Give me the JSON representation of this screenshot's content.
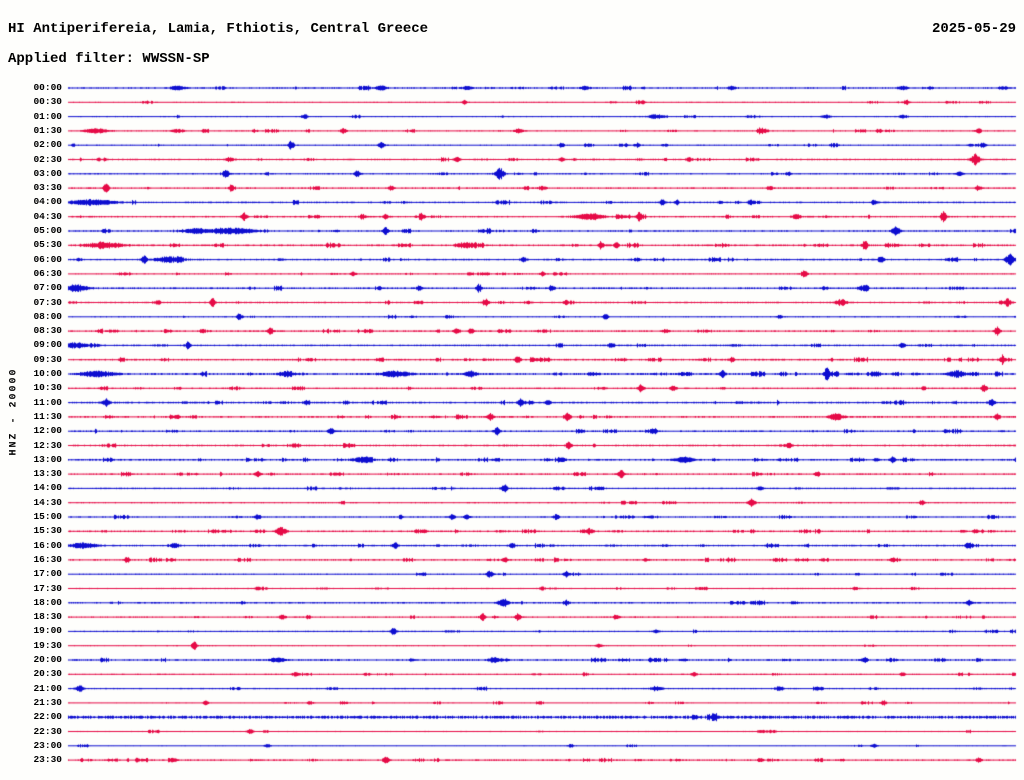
{
  "header": {
    "title": "HI Antiperifereia, Lamia, Fthiotis, Central Greece",
    "date": "2025-05-29",
    "filter_label": "Applied filter: WWSSN-SP"
  },
  "axis": {
    "left_label": "HNZ - 20000",
    "row_interval": "30 minutes",
    "first_row": "00:00",
    "last_row": "23:30"
  },
  "colors": {
    "trace_blue": "#0d0dd0",
    "trace_red": "#e60a46",
    "text": "#000000",
    "background": "#fefefc"
  },
  "chart_data": {
    "type": "line",
    "subtype": "helicorder-seismogram",
    "title": "HI Antiperifereia, Lamia, Fthiotis, Central Greece",
    "date": "2025-05-29",
    "applied_filter": "WWSSN-SP",
    "channel": "HNZ - 20000",
    "row_interval_minutes": 30,
    "row_color_alternation": [
      "blue",
      "red"
    ],
    "rows": [
      {
        "t": "00:00",
        "c": "blue",
        "b": 0.7,
        "a": 0.8,
        "ev": [
          [
            0.115,
            2.2,
            5
          ],
          [
            0.33,
            2.2,
            4
          ],
          [
            0.42,
            2.0,
            3
          ],
          [
            0.545,
            2.0,
            3
          ],
          [
            0.7,
            1.8,
            3
          ],
          [
            0.88,
            1.8,
            4
          ]
        ]
      },
      {
        "t": "00:30",
        "c": "red",
        "b": 0.55,
        "a": 0.35,
        "ev": [
          [
            0.418,
            2.0,
            2
          ],
          [
            0.884,
            2.6,
            2
          ]
        ]
      },
      {
        "t": "01:00",
        "c": "blue",
        "b": 0.55,
        "a": 0.4,
        "ev": [
          [
            0.25,
            1.8,
            2
          ],
          [
            0.62,
            2.0,
            6
          ],
          [
            0.8,
            1.8,
            3
          ],
          [
            0.88,
            1.8,
            3
          ]
        ]
      },
      {
        "t": "01:30",
        "c": "red",
        "b": 0.6,
        "a": 0.9,
        "ev": [
          [
            0.03,
            2.2,
            8
          ],
          [
            0.115,
            2.0,
            4
          ],
          [
            0.29,
            3.0,
            2
          ],
          [
            0.475,
            2.2,
            3
          ],
          [
            0.73,
            1.8,
            2
          ],
          [
            0.855,
            1.8,
            2
          ],
          [
            0.96,
            2.0,
            2
          ]
        ]
      },
      {
        "t": "02:00",
        "c": "blue",
        "b": 0.6,
        "a": 0.5,
        "ev": [
          [
            0.235,
            4.6,
            2
          ],
          [
            0.33,
            3.8,
            2
          ],
          [
            0.52,
            2.0,
            2
          ],
          [
            0.6,
            2.0,
            2
          ],
          [
            0.965,
            2.2,
            2
          ]
        ]
      },
      {
        "t": "02:30",
        "c": "red",
        "b": 0.65,
        "a": 0.8,
        "ev": [
          [
            0.17,
            2.2,
            3
          ],
          [
            0.41,
            2.6,
            2
          ],
          [
            0.52,
            2.0,
            2
          ],
          [
            0.655,
            2.0,
            2
          ],
          [
            0.957,
            5.5,
            3
          ]
        ]
      },
      {
        "t": "03:00",
        "c": "blue",
        "b": 0.65,
        "a": 0.7,
        "ev": [
          [
            0.166,
            4.8,
            2
          ],
          [
            0.305,
            3.6,
            2
          ],
          [
            0.455,
            5.8,
            3
          ],
          [
            0.76,
            2.0,
            2
          ],
          [
            0.94,
            2.6,
            2
          ]
        ]
      },
      {
        "t": "03:30",
        "c": "red",
        "b": 0.7,
        "a": 0.9,
        "ev": [
          [
            0.04,
            4.0,
            2
          ],
          [
            0.172,
            3.4,
            1.5
          ],
          [
            0.34,
            2.2,
            2
          ],
          [
            0.5,
            2.0,
            3
          ],
          [
            0.74,
            2.0,
            2
          ],
          [
            0.96,
            2.0,
            2
          ]
        ]
      },
      {
        "t": "04:00",
        "c": "blue",
        "b": 0.7,
        "a": 0.7,
        "ev": [
          [
            0.025,
            2.8,
            16
          ],
          [
            0.627,
            3.8,
            1.5
          ],
          [
            0.642,
            3.0,
            1.5
          ],
          [
            0.72,
            2.0,
            2
          ],
          [
            0.85,
            2.8,
            2
          ]
        ]
      },
      {
        "t": "04:30",
        "c": "red",
        "b": 0.7,
        "a": 0.9,
        "ev": [
          [
            0.185,
            3.8,
            2
          ],
          [
            0.31,
            2.8,
            2
          ],
          [
            0.335,
            2.6,
            2
          ],
          [
            0.373,
            2.6,
            2
          ],
          [
            0.55,
            3.2,
            10
          ],
          [
            0.602,
            3.6,
            2
          ],
          [
            0.768,
            2.8,
            3
          ],
          [
            0.923,
            5.8,
            2
          ]
        ]
      },
      {
        "t": "05:00",
        "c": "blue",
        "b": 0.7,
        "a": 0.9,
        "ev": [
          [
            0.135,
            2.8,
            8
          ],
          [
            0.175,
            3.0,
            14
          ],
          [
            0.335,
            3.8,
            2
          ],
          [
            0.443,
            2.8,
            2
          ],
          [
            0.873,
            4.6,
            3
          ]
        ]
      },
      {
        "t": "05:30",
        "c": "red",
        "b": 0.75,
        "a": 1.3,
        "ev": [
          [
            0.04,
            2.6,
            12
          ],
          [
            0.42,
            2.8,
            6
          ],
          [
            0.562,
            3.8,
            2
          ],
          [
            0.578,
            3.2,
            2
          ],
          [
            0.84,
            3.8,
            2
          ]
        ]
      },
      {
        "t": "06:00",
        "c": "blue",
        "b": 0.7,
        "a": 0.9,
        "ev": [
          [
            0.08,
            3.8,
            2
          ],
          [
            0.105,
            2.8,
            10
          ],
          [
            0.48,
            2.4,
            2
          ],
          [
            0.857,
            3.8,
            2
          ],
          [
            0.993,
            5.8,
            3
          ]
        ]
      },
      {
        "t": "06:30",
        "c": "red",
        "b": 0.6,
        "a": 0.6,
        "ev": [
          [
            0.3,
            2.0,
            2
          ],
          [
            0.5,
            2.0,
            2
          ],
          [
            0.776,
            3.8,
            2
          ]
        ]
      },
      {
        "t": "07:00",
        "c": "blue",
        "b": 0.75,
        "a": 1.1,
        "ev": [
          [
            0.008,
            3.2,
            8
          ],
          [
            0.37,
            2.6,
            2
          ],
          [
            0.433,
            3.8,
            2
          ],
          [
            0.51,
            2.8,
            2
          ],
          [
            0.84,
            2.4,
            3
          ]
        ]
      },
      {
        "t": "07:30",
        "c": "red",
        "b": 0.65,
        "a": 0.8,
        "ev": [
          [
            0.152,
            4.8,
            1.6
          ],
          [
            0.44,
            2.8,
            2
          ],
          [
            0.525,
            2.8,
            2
          ],
          [
            0.815,
            3.0,
            4
          ],
          [
            0.99,
            2.8,
            2
          ]
        ]
      },
      {
        "t": "08:00",
        "c": "blue",
        "b": 0.6,
        "a": 0.5,
        "ev": [
          [
            0.18,
            3.8,
            1.6
          ],
          [
            0.567,
            2.8,
            2
          ],
          [
            0.75,
            2.0,
            2
          ]
        ]
      },
      {
        "t": "08:30",
        "c": "red",
        "b": 0.7,
        "a": 1.0,
        "ev": [
          [
            0.213,
            3.8,
            2
          ],
          [
            0.41,
            2.8,
            2
          ],
          [
            0.425,
            2.6,
            2
          ],
          [
            0.63,
            2.2,
            2
          ],
          [
            0.98,
            4.6,
            2
          ]
        ]
      },
      {
        "t": "09:00",
        "c": "blue",
        "b": 0.7,
        "a": 0.8,
        "ev": [
          [
            0.006,
            2.8,
            10
          ],
          [
            0.126,
            3.8,
            1.6
          ],
          [
            0.573,
            2.8,
            2
          ],
          [
            0.88,
            2.6,
            2
          ]
        ]
      },
      {
        "t": "09:30",
        "c": "red",
        "b": 0.75,
        "a": 1.1,
        "ev": [
          [
            0.474,
            3.8,
            2
          ],
          [
            0.7,
            2.4,
            2
          ],
          [
            0.985,
            3.6,
            2
          ]
        ]
      },
      {
        "t": "10:00",
        "c": "blue",
        "b": 0.8,
        "a": 1.5,
        "ev": [
          [
            0.03,
            2.8,
            12
          ],
          [
            0.23,
            2.8,
            5
          ],
          [
            0.345,
            3.0,
            10
          ],
          [
            0.425,
            2.8,
            4
          ],
          [
            0.69,
            3.8,
            2
          ],
          [
            0.8,
            4.4,
            2
          ],
          [
            0.937,
            3.2,
            6
          ]
        ]
      },
      {
        "t": "10:30",
        "c": "red",
        "b": 0.65,
        "a": 0.7,
        "ev": [
          [
            0.604,
            3.8,
            2
          ],
          [
            0.638,
            2.8,
            2
          ],
          [
            0.966,
            3.8,
            2
          ]
        ]
      },
      {
        "t": "11:00",
        "c": "blue",
        "b": 0.75,
        "a": 1.0,
        "ev": [
          [
            0.04,
            3.8,
            2.5
          ],
          [
            0.477,
            3.8,
            2
          ],
          [
            0.506,
            3.0,
            2
          ],
          [
            0.974,
            4.6,
            2
          ]
        ]
      },
      {
        "t": "11:30",
        "c": "red",
        "b": 0.75,
        "a": 1.1,
        "ev": [
          [
            0.445,
            3.8,
            2
          ],
          [
            0.527,
            3.8,
            2
          ],
          [
            0.81,
            3.6,
            5
          ],
          [
            0.98,
            2.8,
            2
          ]
        ]
      },
      {
        "t": "12:00",
        "c": "blue",
        "b": 0.7,
        "a": 0.9,
        "ev": [
          [
            0.277,
            2.8,
            2
          ],
          [
            0.452,
            3.8,
            2
          ],
          [
            0.617,
            2.6,
            2
          ]
        ]
      },
      {
        "t": "12:30",
        "c": "red",
        "b": 0.7,
        "a": 0.9,
        "ev": [
          [
            0.528,
            3.8,
            2
          ],
          [
            0.76,
            2.6,
            2
          ]
        ]
      },
      {
        "t": "13:00",
        "c": "blue",
        "b": 0.75,
        "a": 1.2,
        "ev": [
          [
            0.31,
            2.4,
            7
          ],
          [
            0.65,
            2.4,
            7
          ],
          [
            0.87,
            2.8,
            2
          ]
        ]
      },
      {
        "t": "13:30",
        "c": "red",
        "b": 0.7,
        "a": 1.0,
        "ev": [
          [
            0.2,
            3.0,
            2
          ],
          [
            0.583,
            3.8,
            2
          ],
          [
            0.79,
            2.4,
            2
          ]
        ]
      },
      {
        "t": "14:00",
        "c": "blue",
        "b": 0.65,
        "a": 0.6,
        "ev": [
          [
            0.46,
            3.8,
            2.5
          ],
          [
            0.73,
            2.0,
            2
          ]
        ]
      },
      {
        "t": "14:30",
        "c": "red",
        "b": 0.6,
        "a": 0.6,
        "ev": [
          [
            0.72,
            3.8,
            2
          ],
          [
            0.9,
            2.2,
            2
          ]
        ]
      },
      {
        "t": "15:00",
        "c": "blue",
        "b": 0.65,
        "a": 0.7,
        "ev": [
          [
            0.2,
            2.8,
            2
          ],
          [
            0.405,
            2.8,
            2
          ],
          [
            0.42,
            2.6,
            2
          ],
          [
            0.515,
            2.8,
            2
          ]
        ]
      },
      {
        "t": "15:30",
        "c": "red",
        "b": 0.7,
        "a": 1.1,
        "ev": [
          [
            0.224,
            4.6,
            3.5
          ],
          [
            0.55,
            2.2,
            3
          ]
        ]
      },
      {
        "t": "16:00",
        "c": "blue",
        "b": 0.7,
        "a": 0.8,
        "ev": [
          [
            0.016,
            2.8,
            9
          ],
          [
            0.345,
            2.8,
            2
          ],
          [
            0.468,
            2.6,
            2
          ],
          [
            0.95,
            2.4,
            2
          ]
        ]
      },
      {
        "t": "16:30",
        "c": "red",
        "b": 0.7,
        "a": 1.0,
        "ev": [
          [
            0.062,
            2.8,
            2
          ],
          [
            0.46,
            2.8,
            2
          ],
          [
            0.87,
            2.2,
            2
          ]
        ]
      },
      {
        "t": "17:00",
        "c": "blue",
        "b": 0.6,
        "a": 0.6,
        "ev": [
          [
            0.444,
            3.4,
            2
          ],
          [
            0.525,
            2.8,
            2
          ]
        ]
      },
      {
        "t": "17:30",
        "c": "red",
        "b": 0.55,
        "a": 0.4,
        "ev": [
          [
            0.2,
            2.0,
            2
          ],
          [
            0.5,
            2.0,
            2
          ],
          [
            0.83,
            2.0,
            2
          ]
        ]
      },
      {
        "t": "18:00",
        "c": "blue",
        "b": 0.7,
        "a": 0.9,
        "ev": [
          [
            0.459,
            3.8,
            3.5
          ],
          [
            0.525,
            2.8,
            2
          ],
          [
            0.95,
            2.4,
            2
          ]
        ]
      },
      {
        "t": "18:30",
        "c": "red",
        "b": 0.65,
        "a": 0.8,
        "ev": [
          [
            0.226,
            2.8,
            2
          ],
          [
            0.437,
            3.6,
            2
          ],
          [
            0.474,
            3.4,
            2
          ],
          [
            0.578,
            2.8,
            2
          ]
        ]
      },
      {
        "t": "19:00",
        "c": "blue",
        "b": 0.6,
        "a": 0.6,
        "ev": [
          [
            0.343,
            3.6,
            2
          ],
          [
            0.62,
            2.0,
            2
          ]
        ]
      },
      {
        "t": "19:30",
        "c": "red",
        "b": 0.55,
        "a": 0.5,
        "ev": [
          [
            0.133,
            4.6,
            1.8
          ],
          [
            0.56,
            2.0,
            2
          ]
        ]
      },
      {
        "t": "20:00",
        "c": "blue",
        "b": 0.75,
        "a": 1.2,
        "ev": [
          [
            0.22,
            2.4,
            5
          ],
          [
            0.45,
            2.4,
            5
          ],
          [
            0.84,
            2.8,
            2
          ]
        ]
      },
      {
        "t": "20:30",
        "c": "red",
        "b": 0.6,
        "a": 0.6,
        "ev": [
          [
            0.24,
            2.0,
            3
          ],
          [
            0.66,
            2.0,
            2
          ],
          [
            0.88,
            2.0,
            2
          ]
        ]
      },
      {
        "t": "21:00",
        "c": "blue",
        "b": 0.6,
        "a": 0.5,
        "ev": [
          [
            0.012,
            3.6,
            2.5
          ],
          [
            0.62,
            2.2,
            4
          ],
          [
            0.75,
            2.2,
            3
          ]
        ]
      },
      {
        "t": "21:30",
        "c": "red",
        "b": 0.5,
        "a": 0.4,
        "ev": [
          [
            0.145,
            2.0,
            2
          ],
          [
            0.255,
            2.0,
            2
          ],
          [
            0.86,
            2.4,
            2
          ]
        ]
      },
      {
        "t": "22:00",
        "c": "blue",
        "b": 1.3,
        "a": 0.15,
        "ev": [
          [
            0.66,
            1.8,
            2
          ]
        ]
      },
      {
        "t": "22:30",
        "c": "red",
        "b": 0.5,
        "a": 0.3,
        "ev": [
          [
            0.192,
            2.6,
            2
          ],
          [
            0.73,
            1.8,
            2
          ]
        ]
      },
      {
        "t": "23:00",
        "c": "blue",
        "b": 0.5,
        "a": 0.3,
        "ev": [
          [
            0.21,
            1.8,
            2
          ],
          [
            0.53,
            1.8,
            2
          ],
          [
            0.85,
            1.8,
            2
          ]
        ]
      },
      {
        "t": "23:30",
        "c": "red",
        "b": 0.7,
        "a": 1.0,
        "ev": [
          [
            0.335,
            3.6,
            2
          ],
          [
            0.73,
            2.0,
            2
          ],
          [
            0.96,
            2.4,
            2
          ]
        ]
      }
    ]
  }
}
